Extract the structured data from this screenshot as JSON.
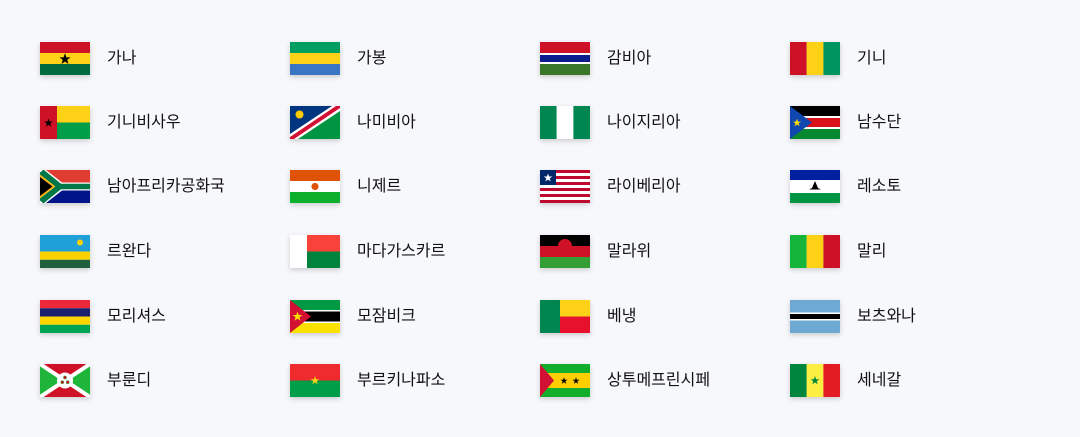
{
  "countries": [
    {
      "name": "가나",
      "icon": "ghana-flag-icon"
    },
    {
      "name": "가봉",
      "icon": "gabon-flag-icon"
    },
    {
      "name": "감비아",
      "icon": "gambia-flag-icon"
    },
    {
      "name": "기니",
      "icon": "guinea-flag-icon"
    },
    {
      "name": "기니비사우",
      "icon": "guinea-bissau-flag-icon"
    },
    {
      "name": "나미비아",
      "icon": "namibia-flag-icon"
    },
    {
      "name": "나이지리아",
      "icon": "nigeria-flag-icon"
    },
    {
      "name": "남수단",
      "icon": "south-sudan-flag-icon"
    },
    {
      "name": "남아프리카공화국",
      "icon": "south-africa-flag-icon"
    },
    {
      "name": "니제르",
      "icon": "niger-flag-icon"
    },
    {
      "name": "라이베리아",
      "icon": "liberia-flag-icon"
    },
    {
      "name": "레소토",
      "icon": "lesotho-flag-icon"
    },
    {
      "name": "르완다",
      "icon": "rwanda-flag-icon"
    },
    {
      "name": "마다가스카르",
      "icon": "madagascar-flag-icon"
    },
    {
      "name": "말라위",
      "icon": "malawi-flag-icon"
    },
    {
      "name": "말리",
      "icon": "mali-flag-icon"
    },
    {
      "name": "모리셔스",
      "icon": "mauritius-flag-icon"
    },
    {
      "name": "모잠비크",
      "icon": "mozambique-flag-icon"
    },
    {
      "name": "베냉",
      "icon": "benin-flag-icon"
    },
    {
      "name": "보츠와나",
      "icon": "botswana-flag-icon"
    },
    {
      "name": "부룬디",
      "icon": "burundi-flag-icon"
    },
    {
      "name": "부르키나파소",
      "icon": "burkina-faso-flag-icon"
    },
    {
      "name": "상투메프린시페",
      "icon": "sao-tome-and-principe-flag-icon"
    },
    {
      "name": "세네갈",
      "icon": "senegal-flag-icon"
    }
  ]
}
